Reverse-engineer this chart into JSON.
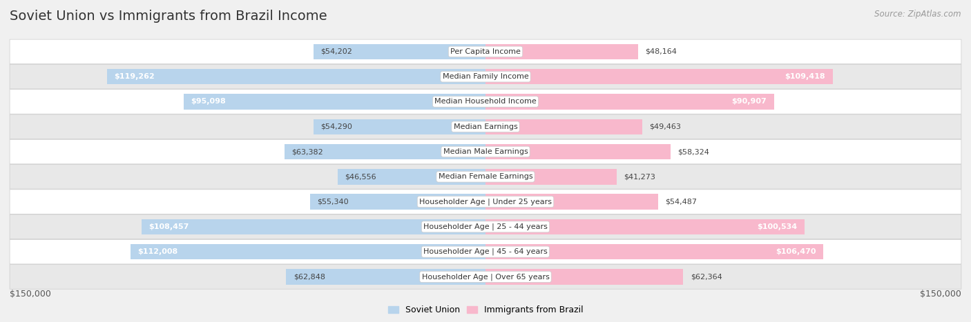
{
  "title": "Soviet Union vs Immigrants from Brazil Income",
  "source": "Source: ZipAtlas.com",
  "categories": [
    "Per Capita Income",
    "Median Family Income",
    "Median Household Income",
    "Median Earnings",
    "Median Male Earnings",
    "Median Female Earnings",
    "Householder Age | Under 25 years",
    "Householder Age | 25 - 44 years",
    "Householder Age | 45 - 64 years",
    "Householder Age | Over 65 years"
  ],
  "soviet_values": [
    54202,
    119262,
    95098,
    54290,
    63382,
    46556,
    55340,
    108457,
    112008,
    62848
  ],
  "brazil_values": [
    48164,
    109418,
    90907,
    49463,
    58324,
    41273,
    54487,
    100534,
    106470,
    62364
  ],
  "soviet_color_light": "#b8d4ec",
  "soviet_color_dark": "#7aacd4",
  "brazil_color_light": "#f8b8cc",
  "brazil_color_dark": "#f06090",
  "soviet_label": "Soviet Union",
  "brazil_label": "Immigrants from Brazil",
  "max_val": 150000,
  "bg_color": "#f0f0f0",
  "row_colors": [
    "#ffffff",
    "#e8e8e8"
  ],
  "axis_label_left": "$150,000",
  "axis_label_right": "$150,000",
  "title_fontsize": 14,
  "source_fontsize": 8.5,
  "bar_label_fontsize": 8,
  "category_fontsize": 8,
  "large_threshold": 0.55
}
